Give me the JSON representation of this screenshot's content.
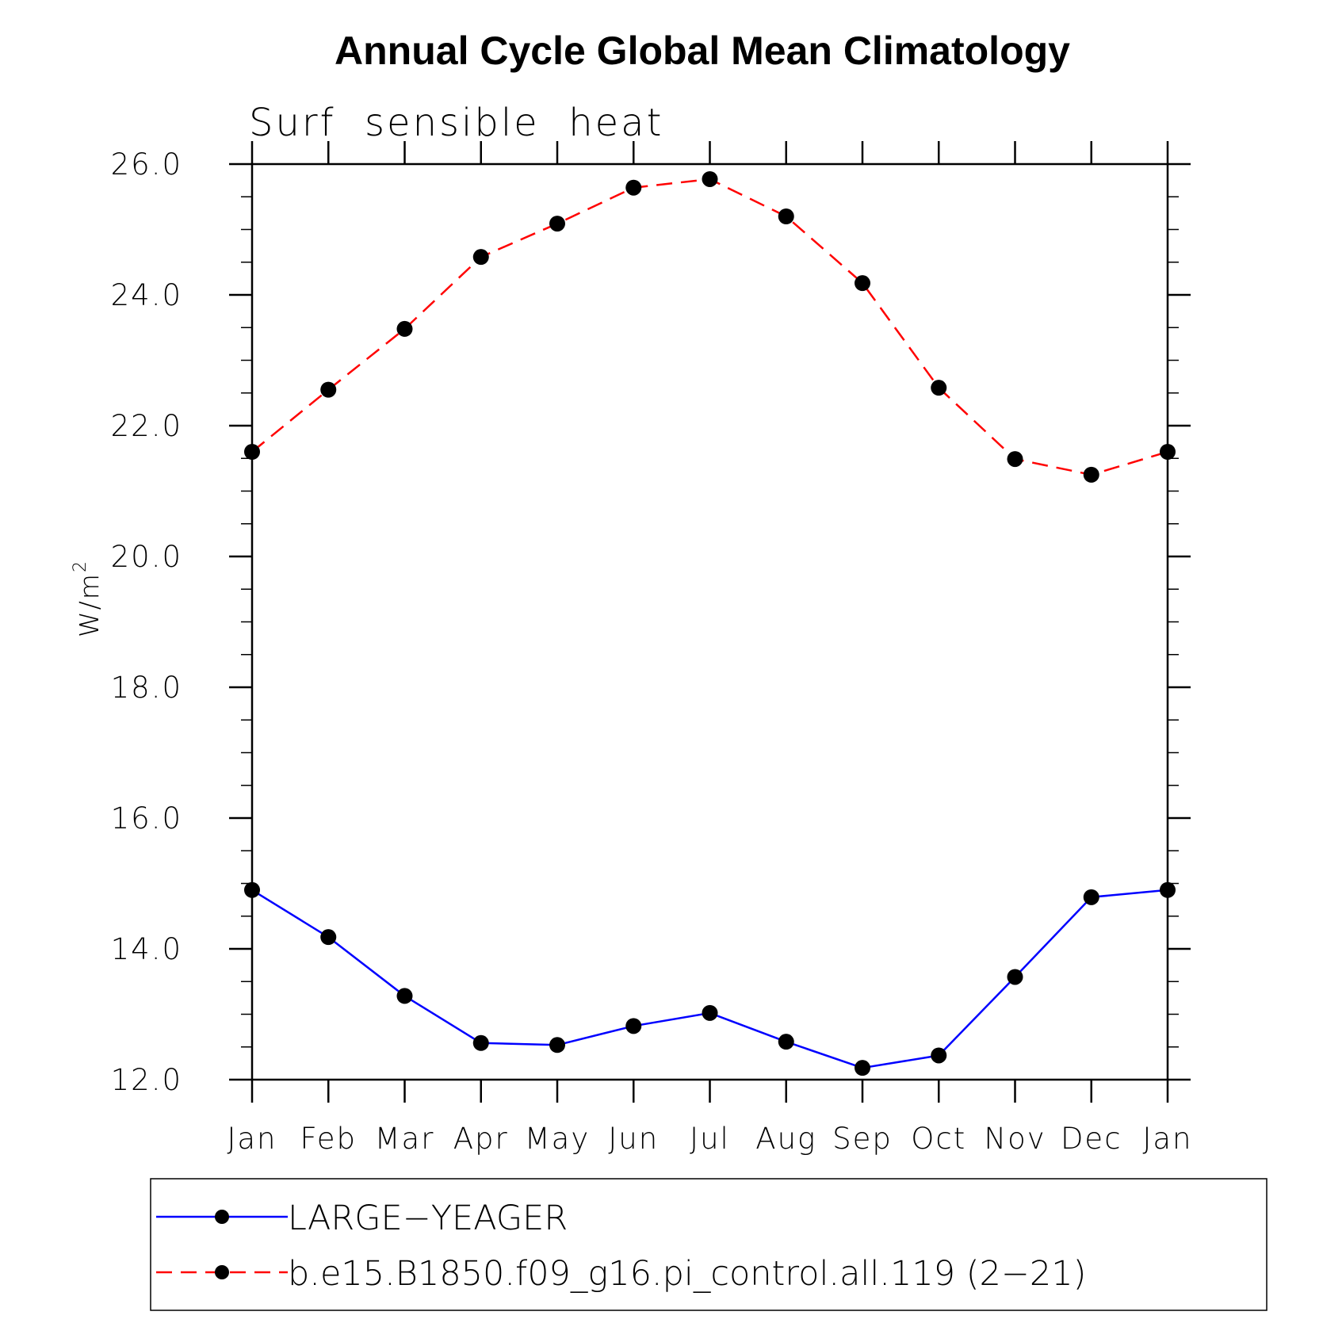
{
  "chart_data": {
    "type": "line",
    "title": "Annual Cycle Global Mean Climatology",
    "subtitle": "Surf  sensible  heat",
    "ylabel": "W/m",
    "ylabel_superscript": "2",
    "categories": [
      "Jan",
      "Feb",
      "Mar",
      "Apr",
      "May",
      "Jun",
      "Jul",
      "Aug",
      "Sep",
      "Oct",
      "Nov",
      "Dec",
      "Jan"
    ],
    "ylim": [
      12.0,
      26.0
    ],
    "yticks": [
      "12.0",
      "14.0",
      "16.0",
      "18.0",
      "20.0",
      "22.0",
      "24.0",
      "26.0"
    ],
    "grid": false,
    "legend_position": "bottom",
    "series": [
      {
        "name": "LARGE−YEAGER",
        "color": "#0000ff",
        "line_style": "solid",
        "marker": "filled-circle",
        "values": [
          14.9,
          14.18,
          13.28,
          12.56,
          12.53,
          12.82,
          13.02,
          12.58,
          12.18,
          12.37,
          13.57,
          14.79,
          14.9
        ]
      },
      {
        "name": "b.e15.B1850.f09_g16.pi_control.all.119 (2−21)",
        "color": "#ff0000",
        "line_style": "dashed",
        "marker": "filled-circle",
        "values": [
          21.6,
          22.55,
          23.48,
          24.58,
          25.09,
          25.64,
          25.77,
          25.2,
          24.18,
          22.58,
          21.49,
          21.25,
          21.6
        ]
      }
    ]
  }
}
